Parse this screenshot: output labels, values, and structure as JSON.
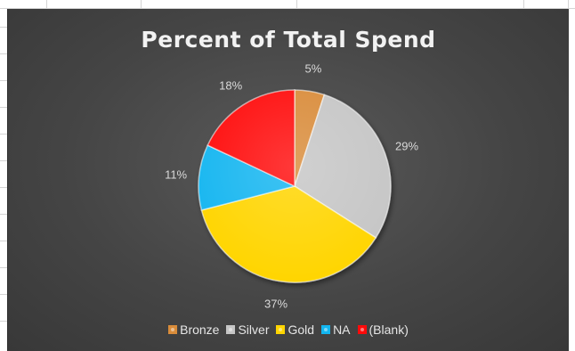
{
  "chart_data": {
    "type": "pie",
    "title": "Percent of Total Spend",
    "slices": [
      {
        "label": "Bronze",
        "value": 5,
        "display": "5%",
        "color": "#d98c3a"
      },
      {
        "label": "Silver",
        "value": 29,
        "display": "29%",
        "color": "#c6c6c6"
      },
      {
        "label": "Gold",
        "value": 37,
        "display": "37%",
        "color": "#ffd500"
      },
      {
        "label": "NA",
        "value": 11,
        "display": "11%",
        "color": "#12b6f0"
      },
      {
        "label": "(Blank)",
        "value": 18,
        "display": "18%",
        "color": "#ff0a0a"
      }
    ],
    "legend_position": "bottom",
    "chart_background": "#454545"
  }
}
